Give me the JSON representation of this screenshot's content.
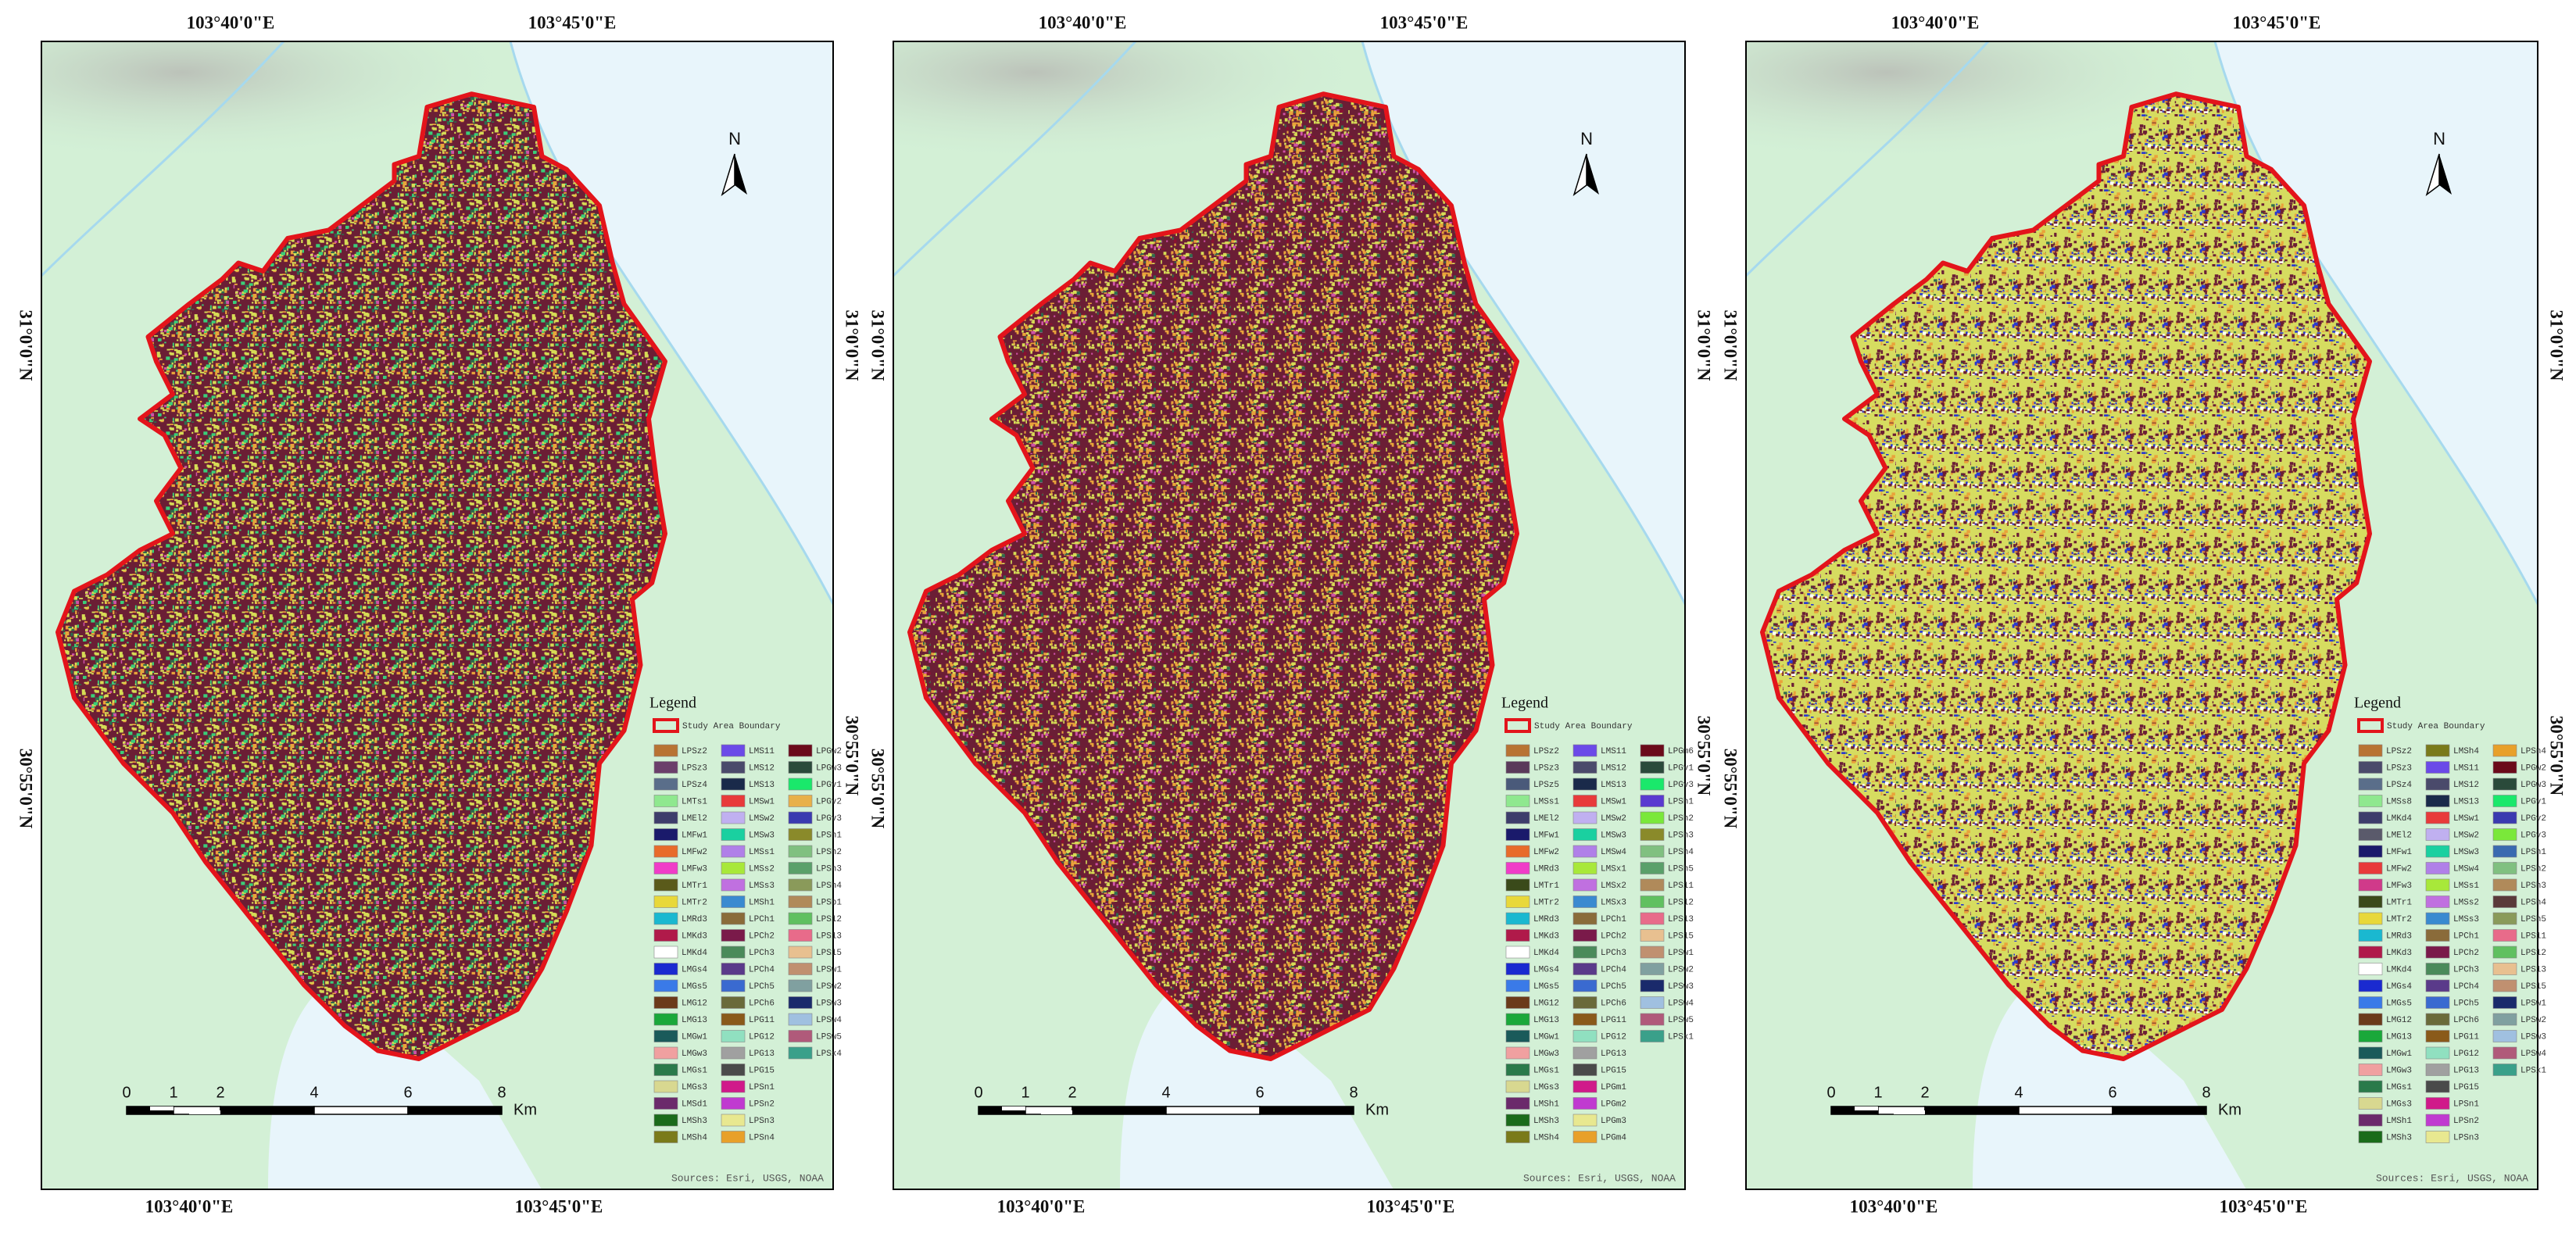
{
  "panels": [
    {
      "top_labels": [
        "103°40'0\"E",
        "103°45'0\"E"
      ],
      "bottom_labels": [
        "103°40'0\"E",
        "103°45'0\"E"
      ],
      "left_labels": [
        "31°0'0\"N",
        "30°55'0\"N"
      ],
      "right_labels": [
        "31°0'0\"N",
        "30°55'0\"N"
      ],
      "north": "N",
      "fill": [
        "#6b1e35",
        "#d6dc55",
        "#e9a23a",
        "#39cf78",
        "#cf52a8",
        "#2f6b4e"
      ],
      "legend": {
        "title": "Legend",
        "boundary": "Study Area Boundary",
        "items": [
          {
            "label": "LPSz2",
            "color": "#b87333"
          },
          {
            "label": "LPSz3",
            "color": "#6b3f6b"
          },
          {
            "label": "LPSz4",
            "color": "#5a6e8a"
          },
          {
            "label": "LMTs1",
            "color": "#8fe88f"
          },
          {
            "label": "LMEl2",
            "color": "#3d3d6b"
          },
          {
            "label": "LMFw1",
            "color": "#1a1a6b"
          },
          {
            "label": "LMFw2",
            "color": "#e86b2a"
          },
          {
            "label": "LMFw3",
            "color": "#f03cc8"
          },
          {
            "label": "LMTr1",
            "color": "#5a5a1a"
          },
          {
            "label": "LMTr2",
            "color": "#e8d83a"
          },
          {
            "label": "LMRd3",
            "color": "#1ab8d0"
          },
          {
            "label": "LMKd3",
            "color": "#b01a4a"
          },
          {
            "label": "LMKd4",
            "color": "#ffffff"
          },
          {
            "label": "LMGs4",
            "color": "#1a2ad0"
          },
          {
            "label": "LMGs5",
            "color": "#3a7ae8"
          },
          {
            "label": "LMG12",
            "color": "#6b3a1a"
          },
          {
            "label": "LMG13",
            "color": "#1aa83a"
          },
          {
            "label": "LMGw1",
            "color": "#1a5a5a"
          },
          {
            "label": "LMGw3",
            "color": "#f0a0a0"
          },
          {
            "label": "LMGs1",
            "color": "#2a7a4a"
          },
          {
            "label": "LMGs3",
            "color": "#d8d890"
          },
          {
            "label": "LMSd1",
            "color": "#6b2a6b"
          },
          {
            "label": "LMSh3",
            "color": "#1a6b1a"
          },
          {
            "label": "LMSh4",
            "color": "#7a7a1a"
          },
          {
            "label": "LMS11",
            "color": "#6b4ae8"
          },
          {
            "label": "LMS12",
            "color": "#4a4a6b"
          },
          {
            "label": "LMS13",
            "color": "#1a2a4a"
          },
          {
            "label": "LMSw1",
            "color": "#e83a3a"
          },
          {
            "label": "LMSw2",
            "color": "#c0b0f0"
          },
          {
            "label": "LMSw3",
            "color": "#1ad0a0"
          },
          {
            "label": "LMSs1",
            "color": "#b080e8"
          },
          {
            "label": "LMSs2",
            "color": "#a8e83a"
          },
          {
            "label": "LMSs3",
            "color": "#c070e0"
          },
          {
            "label": "LMSh1",
            "color": "#3a8ad0"
          },
          {
            "label": "LPCh1",
            "color": "#8a6b3a"
          },
          {
            "label": "LPCh2",
            "color": "#7a1a4a"
          },
          {
            "label": "LPCh3",
            "color": "#4a8a5a"
          },
          {
            "label": "LPCh4",
            "color": "#5a3a8a"
          },
          {
            "label": "LPCh5",
            "color": "#3a6ad0"
          },
          {
            "label": "LPCh6",
            "color": "#6a6a3a"
          },
          {
            "label": "LPG11",
            "color": "#8a5a1a"
          },
          {
            "label": "LPG12",
            "color": "#90e0c0"
          },
          {
            "label": "LPG13",
            "color": "#a0a0a0"
          },
          {
            "label": "LPG15",
            "color": "#4a4a4a"
          },
          {
            "label": "LPSn1",
            "color": "#d01a8a"
          },
          {
            "label": "LPSn2",
            "color": "#c03ad0"
          },
          {
            "label": "LPSn3",
            "color": "#e8e890"
          },
          {
            "label": "LPSn4",
            "color": "#e8a02a"
          },
          {
            "label": "LPGw2",
            "color": "#6b0a1a"
          },
          {
            "label": "LPGw3",
            "color": "#2a4a3a"
          },
          {
            "label": "LPGv1",
            "color": "#1ae86b"
          },
          {
            "label": "LPGv2",
            "color": "#e8b04a"
          },
          {
            "label": "LPGv3",
            "color": "#3a3ab0"
          },
          {
            "label": "LPSh1",
            "color": "#8a8a2a"
          },
          {
            "label": "LPSh2",
            "color": "#80c080"
          },
          {
            "label": "LPSh3",
            "color": "#5aa06a"
          },
          {
            "label": "LPSh4",
            "color": "#8a9a5a"
          },
          {
            "label": "LPSb1",
            "color": "#b08a5a"
          },
          {
            "label": "LPS12",
            "color": "#60c060"
          },
          {
            "label": "LPS13",
            "color": "#e86b8a"
          },
          {
            "label": "LPS15",
            "color": "#e8c090"
          },
          {
            "label": "LPSw1",
            "color": "#c09070"
          },
          {
            "label": "LPSw2",
            "color": "#80a0a0"
          },
          {
            "label": "LPSw3",
            "color": "#1a2a6b"
          },
          {
            "label": "LPSw4",
            "color": "#a0c0e0"
          },
          {
            "label": "LPSw5",
            "color": "#b05a7a"
          },
          {
            "label": "LPSx4",
            "color": "#3aa08a"
          }
        ]
      },
      "scale": {
        "ticks": [
          "0",
          "1",
          "2",
          "4",
          "6",
          "8"
        ],
        "unit": "Km"
      },
      "source": "Sources: Esri, USGS, NOAA"
    },
    {
      "top_labels": [
        "103°40'0\"E",
        "103°45'0\"E"
      ],
      "bottom_labels": [
        "103°40'0\"E",
        "103°45'0\"E"
      ],
      "left_labels": [
        "31°0'0\"N",
        "30°55'0\"N"
      ],
      "right_labels": [
        "31°0'0\"N",
        "30°55'0\"N"
      ],
      "north": "N",
      "fill": [
        "#6b1e35",
        "#d6dc55",
        "#e9a23a",
        "#2f6b4e",
        "#cf52a8",
        "#8a1030"
      ],
      "legend": {
        "title": "Legend",
        "boundary": "Study Area Boundary",
        "items": [
          {
            "label": "LPSz2",
            "color": "#b87333"
          },
          {
            "label": "LPSz3",
            "color": "#5a3a5a"
          },
          {
            "label": "LPSz5",
            "color": "#4a5a7a"
          },
          {
            "label": "LMSs1",
            "color": "#8fe88f"
          },
          {
            "label": "LMEl2",
            "color": "#3d3d6b"
          },
          {
            "label": "LMFw1",
            "color": "#1a1a6b"
          },
          {
            "label": "LMFw2",
            "color": "#e86b2a"
          },
          {
            "label": "LMRd3",
            "color": "#f03cc8"
          },
          {
            "label": "LMTr1",
            "color": "#3a4a1a"
          },
          {
            "label": "LMTr2",
            "color": "#e8d83a"
          },
          {
            "label": "LMRd3",
            "color": "#1ab8d0"
          },
          {
            "label": "LMKd3",
            "color": "#b01a4a"
          },
          {
            "label": "LMKd4",
            "color": "#ffffff"
          },
          {
            "label": "LMGs4",
            "color": "#1a2ad0"
          },
          {
            "label": "LMGs5",
            "color": "#3a7ae8"
          },
          {
            "label": "LMG12",
            "color": "#6b3a1a"
          },
          {
            "label": "LMG13",
            "color": "#1aa83a"
          },
          {
            "label": "LMGw1",
            "color": "#1a5a5a"
          },
          {
            "label": "LMGw3",
            "color": "#f0a0a0"
          },
          {
            "label": "LMGs1",
            "color": "#2a7a4a"
          },
          {
            "label": "LMGs3",
            "color": "#d8d890"
          },
          {
            "label": "LMSh1",
            "color": "#6b2a6b"
          },
          {
            "label": "LMSh3",
            "color": "#1a6b1a"
          },
          {
            "label": "LMSh4",
            "color": "#7a7a1a"
          },
          {
            "label": "LMS11",
            "color": "#6b4ae8"
          },
          {
            "label": "LMS12",
            "color": "#4a4a6b"
          },
          {
            "label": "LMS13",
            "color": "#1a2a4a"
          },
          {
            "label": "LMSw1",
            "color": "#e83a3a"
          },
          {
            "label": "LMSw2",
            "color": "#c0b0f0"
          },
          {
            "label": "LMSw3",
            "color": "#1ad0a0"
          },
          {
            "label": "LMSw4",
            "color": "#b080e8"
          },
          {
            "label": "LMSx1",
            "color": "#a8e83a"
          },
          {
            "label": "LMSx2",
            "color": "#c070e0"
          },
          {
            "label": "LMSx3",
            "color": "#3a8ad0"
          },
          {
            "label": "LPCh1",
            "color": "#8a6b3a"
          },
          {
            "label": "LPCh2",
            "color": "#7a1a4a"
          },
          {
            "label": "LPCh3",
            "color": "#4a8a5a"
          },
          {
            "label": "LPCh4",
            "color": "#5a3a8a"
          },
          {
            "label": "LPCh5",
            "color": "#3a6ad0"
          },
          {
            "label": "LPCh6",
            "color": "#6a6a3a"
          },
          {
            "label": "LPG11",
            "color": "#8a5a1a"
          },
          {
            "label": "LPG12",
            "color": "#90e0c0"
          },
          {
            "label": "LPG13",
            "color": "#a0a0a0"
          },
          {
            "label": "LPG15",
            "color": "#4a4a4a"
          },
          {
            "label": "LPGm1",
            "color": "#d01a8a"
          },
          {
            "label": "LPGm2",
            "color": "#c03ad0"
          },
          {
            "label": "LPGm3",
            "color": "#e8e890"
          },
          {
            "label": "LPGm4",
            "color": "#e8a02a"
          },
          {
            "label": "LPGm6",
            "color": "#6b0a1a"
          },
          {
            "label": "LPGv1",
            "color": "#2a4a3a"
          },
          {
            "label": "LPGv3",
            "color": "#1ae86b"
          },
          {
            "label": "LPSh1",
            "color": "#5a3ad0"
          },
          {
            "label": "LPSh2",
            "color": "#7ae83a"
          },
          {
            "label": "LPSh3",
            "color": "#8a8a2a"
          },
          {
            "label": "LPSh4",
            "color": "#80c080"
          },
          {
            "label": "LPSh5",
            "color": "#5aa06a"
          },
          {
            "label": "LPS11",
            "color": "#b08a5a"
          },
          {
            "label": "LPS12",
            "color": "#60c060"
          },
          {
            "label": "LPS13",
            "color": "#e86b8a"
          },
          {
            "label": "LPS15",
            "color": "#e8c090"
          },
          {
            "label": "LPSw1",
            "color": "#c09070"
          },
          {
            "label": "LPSw2",
            "color": "#80a0a0"
          },
          {
            "label": "LPSw3",
            "color": "#1a2a6b"
          },
          {
            "label": "LPSw4",
            "color": "#a0c0e0"
          },
          {
            "label": "LPSw5",
            "color": "#b05a7a"
          },
          {
            "label": "LPSx1",
            "color": "#3aa08a"
          }
        ]
      },
      "scale": {
        "ticks": [
          "0",
          "1",
          "2",
          "4",
          "6",
          "8"
        ],
        "unit": "Km"
      },
      "source": "Sources: Esri, USGS, NOAA"
    },
    {
      "top_labels": [
        "103°40'0\"E",
        "103°45'0\"E"
      ],
      "bottom_labels": [
        "103°40'0\"E",
        "103°45'0\"E"
      ],
      "left_labels": [
        "31°0'0\"N",
        "30°55'0\"N"
      ],
      "right_labels": [
        "31°0'0\"N",
        "30°55'0\"N"
      ],
      "north": "N",
      "fill": [
        "#d6dc60",
        "#6b1e35",
        "#e9a23a",
        "#2f6b4e",
        "#2a3ad0",
        "#ffffff"
      ],
      "legend": {
        "title": "Legend",
        "boundary": "Study Area Boundary",
        "items": [
          {
            "label": "LPSz2",
            "color": "#b87333"
          },
          {
            "label": "LPSz3",
            "color": "#4a4a6b"
          },
          {
            "label": "LPSz4",
            "color": "#5a6e8a"
          },
          {
            "label": "LMSs8",
            "color": "#8fe88f"
          },
          {
            "label": "LMKd4",
            "color": "#3d3d6b"
          },
          {
            "label": "LMEl2",
            "color": "#5a5a6b"
          },
          {
            "label": "LMFw1",
            "color": "#1a1a6b"
          },
          {
            "label": "LMFw2",
            "color": "#e83a3a"
          },
          {
            "label": "LMFw3",
            "color": "#d03a8a"
          },
          {
            "label": "LMTr1",
            "color": "#3a4a1a"
          },
          {
            "label": "LMTr2",
            "color": "#e8d83a"
          },
          {
            "label": "LMRd3",
            "color": "#1ab8d0"
          },
          {
            "label": "LMKd3",
            "color": "#b01a4a"
          },
          {
            "label": "LMKd4",
            "color": "#ffffff"
          },
          {
            "label": "LMGs4",
            "color": "#1a2ad0"
          },
          {
            "label": "LMGs5",
            "color": "#3a7ae8"
          },
          {
            "label": "LMG12",
            "color": "#6b3a1a"
          },
          {
            "label": "LMG13",
            "color": "#1aa83a"
          },
          {
            "label": "LMGw1",
            "color": "#1a5a5a"
          },
          {
            "label": "LMGw3",
            "color": "#f0a0a0"
          },
          {
            "label": "LMGs1",
            "color": "#2a7a4a"
          },
          {
            "label": "LMGs3",
            "color": "#d8d890"
          },
          {
            "label": "LMSh1",
            "color": "#6b2a6b"
          },
          {
            "label": "LMSh3",
            "color": "#1a6b1a"
          },
          {
            "label": "LMSh4",
            "color": "#7a7a1a"
          },
          {
            "label": "LMS11",
            "color": "#6b4ae8"
          },
          {
            "label": "LMS12",
            "color": "#4a4a6b"
          },
          {
            "label": "LMS13",
            "color": "#1a2a4a"
          },
          {
            "label": "LMSw1",
            "color": "#e83a3a"
          },
          {
            "label": "LMSw2",
            "color": "#c0b0f0"
          },
          {
            "label": "LMSw3",
            "color": "#1ad0a0"
          },
          {
            "label": "LMSw4",
            "color": "#b080e8"
          },
          {
            "label": "LMSs1",
            "color": "#a8e83a"
          },
          {
            "label": "LMSs2",
            "color": "#c070e0"
          },
          {
            "label": "LMSs3",
            "color": "#3a8ad0"
          },
          {
            "label": "LPCh1",
            "color": "#8a6b3a"
          },
          {
            "label": "LPCh2",
            "color": "#7a1a4a"
          },
          {
            "label": "LPCh3",
            "color": "#4a8a5a"
          },
          {
            "label": "LPCh4",
            "color": "#5a3a8a"
          },
          {
            "label": "LPCh5",
            "color": "#3a6ad0"
          },
          {
            "label": "LPCh6",
            "color": "#6a6a3a"
          },
          {
            "label": "LPG11",
            "color": "#8a5a1a"
          },
          {
            "label": "LPG12",
            "color": "#90e0c0"
          },
          {
            "label": "LPG13",
            "color": "#a0a0a0"
          },
          {
            "label": "LPG15",
            "color": "#4a4a4a"
          },
          {
            "label": "LPSn1",
            "color": "#d01a8a"
          },
          {
            "label": "LPSn2",
            "color": "#c03ad0"
          },
          {
            "label": "LPSn3",
            "color": "#e8e890"
          },
          {
            "label": "LPSn4",
            "color": "#e8a02a"
          },
          {
            "label": "LPGw2",
            "color": "#6b0a1a"
          },
          {
            "label": "LPGw3",
            "color": "#2a4a3a"
          },
          {
            "label": "LPGv1",
            "color": "#1ae86b"
          },
          {
            "label": "LPGv2",
            "color": "#3a3ab0"
          },
          {
            "label": "LPGv3",
            "color": "#7ae83a"
          },
          {
            "label": "LPSh1",
            "color": "#3a6ab0"
          },
          {
            "label": "LPSh2",
            "color": "#80c080"
          },
          {
            "label": "LPSh3",
            "color": "#b08a5a"
          },
          {
            "label": "LPSh4",
            "color": "#5a3a3a"
          },
          {
            "label": "LPSh5",
            "color": "#8a9a5a"
          },
          {
            "label": "LPS11",
            "color": "#e86b8a"
          },
          {
            "label": "LPS12",
            "color": "#60c060"
          },
          {
            "label": "LPS13",
            "color": "#e8c090"
          },
          {
            "label": "LPS15",
            "color": "#c09070"
          },
          {
            "label": "LPSw1",
            "color": "#1a2a6b"
          },
          {
            "label": "LPSw2",
            "color": "#80a0a0"
          },
          {
            "label": "LPSw3",
            "color": "#a0c0e0"
          },
          {
            "label": "LPSw4",
            "color": "#b05a7a"
          },
          {
            "label": "LPSx1",
            "color": "#3aa08a"
          }
        ]
      },
      "scale": {
        "ticks": [
          "0",
          "1",
          "2",
          "4",
          "6",
          "8"
        ],
        "unit": "Km"
      },
      "source": "Sources: Esri, USGS, NOAA"
    }
  ]
}
